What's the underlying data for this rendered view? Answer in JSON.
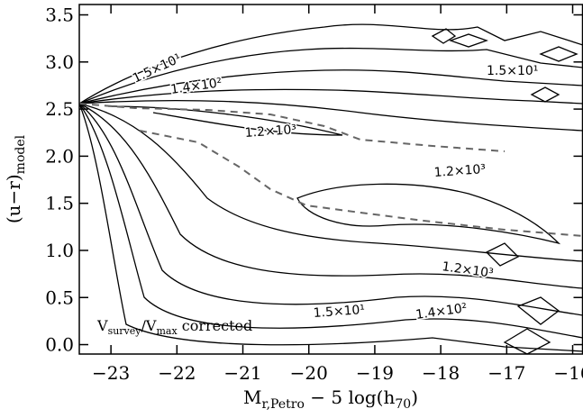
{
  "chart_data": {
    "type": "contour",
    "x_label": {
      "main": "M",
      "sub": "r,Petro",
      "rest": " − 5 log(h",
      "sub2": "70",
      "end": ")"
    },
    "y_label": {
      "main": "(u−r)",
      "sub": "model"
    },
    "annotation": {
      "v1": "V",
      "s1": "survey",
      "slash": "/V",
      "s2": "max",
      "rest": " corrected"
    },
    "xlim": [
      -23.48,
      -15.85
    ],
    "ylim": [
      -0.1,
      3.61
    ],
    "xticks": [
      {
        "value": -23,
        "label": "−23"
      },
      {
        "value": -22,
        "label": "−22"
      },
      {
        "value": -21,
        "label": "−21"
      },
      {
        "value": -20,
        "label": "−20"
      },
      {
        "value": -19,
        "label": "−19"
      },
      {
        "value": -18,
        "label": "−18"
      },
      {
        "value": -17,
        "label": "−17"
      },
      {
        "value": -16,
        "label": "−16"
      }
    ],
    "yticks": [
      {
        "value": 0,
        "label": "0.0"
      },
      0.5,
      {
        "value": 1,
        "label": "1.0"
      },
      1.5,
      {
        "value": 2,
        "label": "2.0"
      },
      2.5,
      {
        "value": 3,
        "label": "3.0"
      },
      3.5
    ],
    "contour_labels": [
      "1.5×10¹",
      "1.4×10²",
      "1.5×10¹",
      "1.2×10³",
      "1.2×10³",
      "1.2×10³",
      "1.5×10¹",
      "1.4×10²"
    ]
  }
}
